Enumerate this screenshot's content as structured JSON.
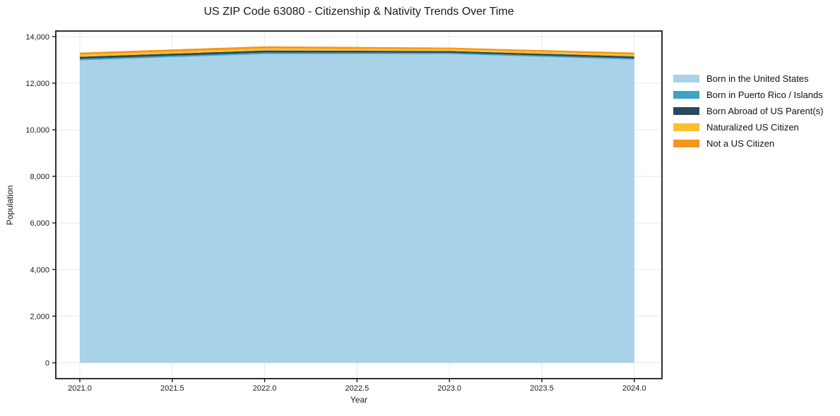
{
  "chart_data": {
    "type": "area",
    "stacked": true,
    "title": "US ZIP Code 63080 - Citizenship & Nativity Trends Over Time",
    "xlabel": "Year",
    "ylabel": "Population",
    "x": [
      2021,
      2022,
      2023,
      2024
    ],
    "series": [
      {
        "name": "Born in the United States",
        "color": "#A7D2E7",
        "values": [
          12980,
          13250,
          13250,
          13010
        ]
      },
      {
        "name": "Born in Puerto Rico / Islands",
        "color": "#3DA5C3",
        "values": [
          60,
          60,
          50,
          55
        ]
      },
      {
        "name": "Born Abroad of US Parent(s)",
        "color": "#2A485E",
        "values": [
          90,
          90,
          75,
          80
        ]
      },
      {
        "name": "Naturalized US Citizen",
        "color": "#FBC02D",
        "values": [
          90,
          90,
          85,
          85
        ]
      },
      {
        "name": "Not a US Citizen",
        "color": "#F7941D",
        "values": [
          90,
          90,
          65,
          80
        ]
      }
    ],
    "stacked_totals": [
      13310,
      13580,
      13525,
      13310
    ],
    "xticks": [
      2021.0,
      2021.5,
      2022.0,
      2022.5,
      2023.0,
      2023.5,
      2024.0
    ],
    "yticks": [
      0,
      2000,
      4000,
      6000,
      8000,
      10000,
      12000,
      14000
    ],
    "xlim": [
      2020.87,
      2024.15
    ],
    "ylim": [
      -680,
      14235
    ],
    "grid": true,
    "grid_color": "#e8e8e8",
    "spine_color": "#1a1a1a",
    "tick_label_color": "#1a1a1a",
    "background_color": "#ffffff",
    "legend_position": "right"
  }
}
